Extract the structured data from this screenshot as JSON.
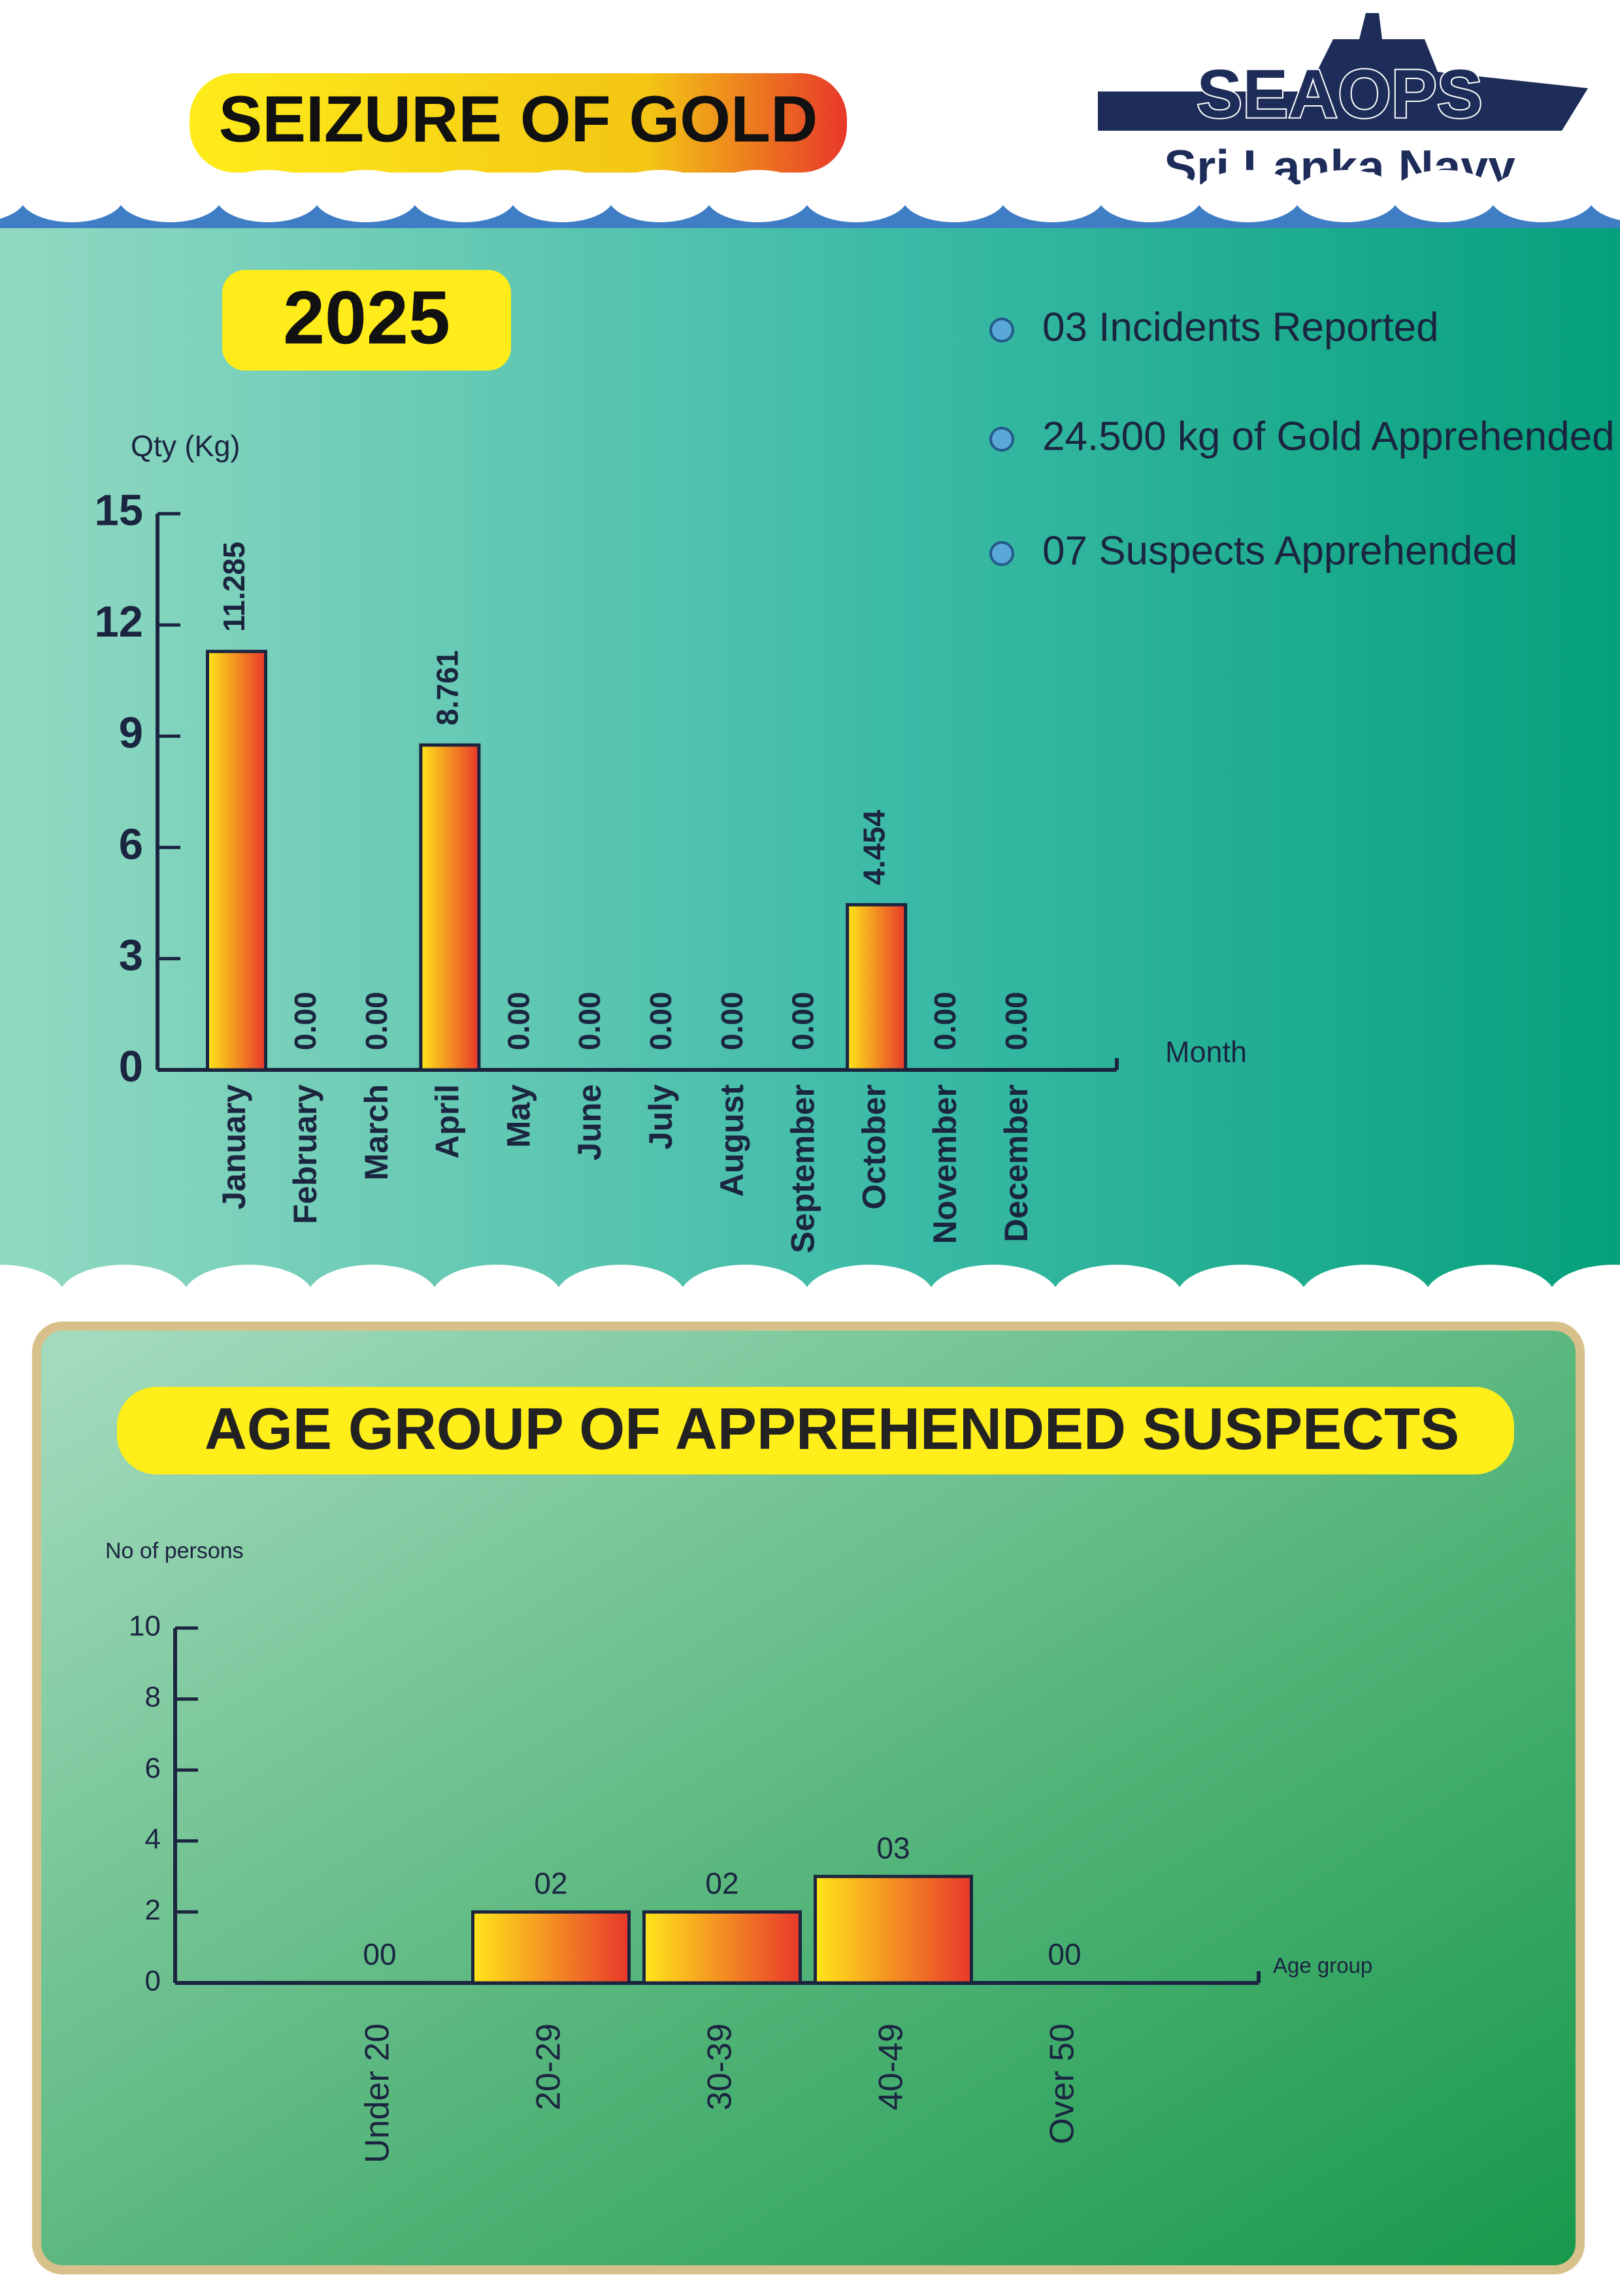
{
  "header": {
    "title": "SEIZURE OF GOLD",
    "logo": "SEAOPS",
    "org": "Sri Lanka Navy"
  },
  "highlights": [
    "03 Incidents Reported",
    "24.500 kg of Gold Apprehended",
    "07 Suspects Apprehended"
  ],
  "chart_data": [
    {
      "type": "bar",
      "title": "2025",
      "y_label": "Qty (Kg)",
      "x_label": "Month",
      "categories": [
        "January",
        "February",
        "March",
        "April",
        "May",
        "June",
        "July",
        "August",
        "September",
        "October",
        "November",
        "December"
      ],
      "values": [
        11.285,
        0,
        0,
        8.761,
        0,
        0,
        0,
        0,
        0,
        4.454,
        0,
        0
      ],
      "value_labels": [
        "11.285",
        "0.00",
        "0.00",
        "8.761",
        "0.00",
        "0.00",
        "0.00",
        "0.00",
        "0.00",
        "4.454",
        "0.00",
        "0.00"
      ],
      "ylim": [
        0,
        15
      ],
      "yticks": [
        0,
        3,
        6,
        9,
        12,
        15
      ],
      "grid": false,
      "color": [
        "#ffe51a",
        "#e8382b"
      ]
    },
    {
      "type": "bar",
      "title": "AGE GROUP OF APPREHENDED SUSPECTS",
      "y_label": "No of persons",
      "x_label": "Age group",
      "categories": [
        "Under 20",
        "20-29",
        "30-39",
        "40-49",
        "Over 50"
      ],
      "values": [
        0,
        2,
        2,
        3,
        0
      ],
      "value_labels": [
        "00",
        "02",
        "02",
        "03",
        "00"
      ],
      "ylim": [
        0,
        10
      ],
      "yticks": [
        0,
        2,
        4,
        6,
        8,
        10
      ],
      "grid": false,
      "color": [
        "#ffe51a",
        "#e8382b"
      ]
    }
  ]
}
